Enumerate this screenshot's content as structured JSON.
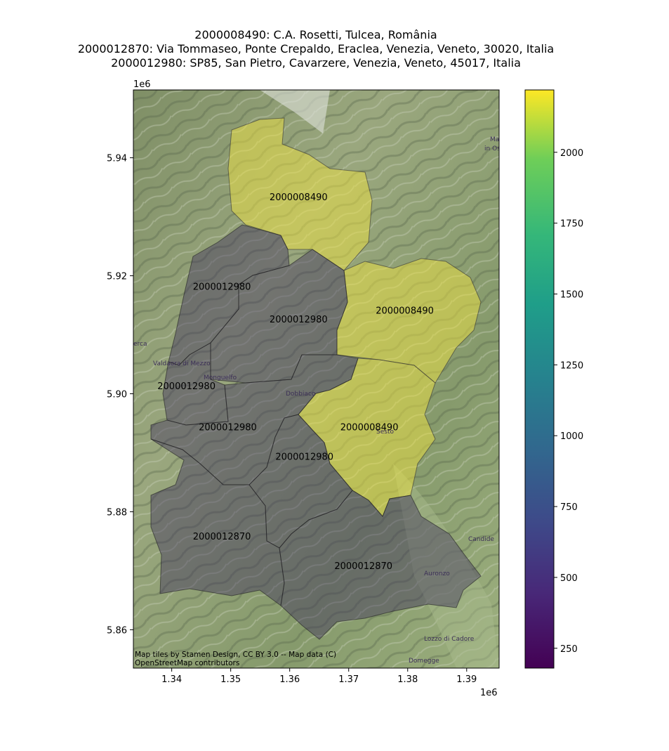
{
  "title_lines": [
    "2000008490: C.A. Rosetti, Tulcea, România",
    "2000012870: Via Tommaseo, Ponte Crepaldo, Eraclea, Venezia, Veneto, 30020, Italia",
    "2000012980: SP85, San Pietro, Cavarzere, Venezia, Veneto, 45017, Italia"
  ],
  "axes": {
    "x_ticks": [
      "1.34",
      "1.35",
      "1.36",
      "1.37",
      "1.38",
      "1.39"
    ],
    "y_ticks": [
      "5.94",
      "5.92",
      "5.90",
      "5.88",
      "5.86"
    ],
    "x_offset_label": "1e6",
    "y_offset_label": "1e6",
    "xlim": [
      1.3335,
      1.3955
    ],
    "ylim": [
      5.8535,
      5.9515
    ]
  },
  "colorbar": {
    "colormap": "viridis",
    "range": [
      180,
      2220
    ],
    "ticks": [
      "250",
      "500",
      "750",
      "1000",
      "1250",
      "1500",
      "1750",
      "2000"
    ],
    "tick_values": [
      250,
      500,
      750,
      1000,
      1250,
      1500,
      1750,
      2000
    ]
  },
  "region_labels": [
    {
      "id": "label-n-north",
      "text": "2000008490",
      "x": 1.3615,
      "y": 5.9328
    },
    {
      "id": "label-n-east",
      "text": "2000008490",
      "x": 1.3795,
      "y": 5.9136
    },
    {
      "id": "label-n-south",
      "text": "2000008490",
      "x": 1.3735,
      "y": 5.8938
    },
    {
      "id": "label-c-nw",
      "text": "2000012980",
      "x": 1.3485,
      "y": 5.9176
    },
    {
      "id": "label-c-nc",
      "text": "2000012980",
      "x": 1.3615,
      "y": 5.9121
    },
    {
      "id": "label-c-w",
      "text": "2000012980",
      "x": 1.3425,
      "y": 5.9008
    },
    {
      "id": "label-c-c",
      "text": "2000012980",
      "x": 1.3495,
      "y": 5.8938
    },
    {
      "id": "label-c-sc",
      "text": "2000012980",
      "x": 1.3625,
      "y": 5.8888
    },
    {
      "id": "label-s-w",
      "text": "2000012870",
      "x": 1.3485,
      "y": 5.8753
    },
    {
      "id": "label-s-e",
      "text": "2000012870",
      "x": 1.3725,
      "y": 5.8703
    }
  ],
  "basemap": {
    "place_names": [
      "Valdaora di Mezzo",
      "Monguelfo",
      "Dobbiaco",
      "Sesto",
      "Candide",
      "Auronzo",
      "Lozzo di Cadore",
      "Domegge",
      "in Os",
      "Ma",
      "erca"
    ],
    "attribution": [
      "Map tiles by Stamen Design, CC BY 3.0 -- Map data (C)",
      "OpenStreetMap contributors"
    ]
  },
  "colors": {
    "high_value": "#f0e442",
    "low_value": "#3b2d5e",
    "terrain": "#8a9e72"
  }
}
